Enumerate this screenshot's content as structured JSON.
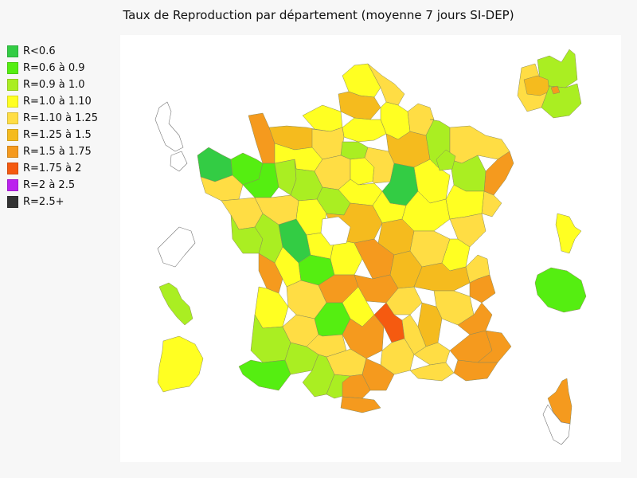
{
  "chart_data": {
    "type": "choropleth",
    "title": "Taux de Reproduction par département (moyenne 7 jours SI-DEP)",
    "legend_placement": "left",
    "legend": [
      {
        "label": "R<0.6",
        "color": "#33cc44"
      },
      {
        "label": "R=0.6 à 0.9",
        "color": "#55ee11"
      },
      {
        "label": "R=0.9 à 1.0",
        "color": "#aaee22"
      },
      {
        "label": "R=1.0 à 1.10",
        "color": "#ffff22"
      },
      {
        "label": "R=1.10 à 1.25",
        "color": "#ffdd44"
      },
      {
        "label": "R=1.25 à 1.5",
        "color": "#f5bb1e"
      },
      {
        "label": "R=1.5 à 1.75",
        "color": "#f59a1e"
      },
      {
        "label": "R=1.75 à 2",
        "color": "#f55a10"
      },
      {
        "label": "R=2 à 2.5",
        "color": "#bb22ee"
      },
      {
        "label": "R=2.5+",
        "color": "#333333"
      }
    ]
  }
}
